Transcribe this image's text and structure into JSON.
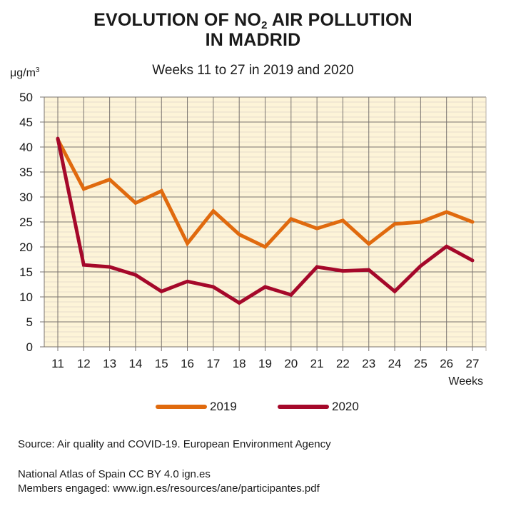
{
  "title": {
    "line1_pre": "EVOLUTION OF NO",
    "line1_sub": "2",
    "line1_post": " AIR POLLUTION",
    "line2": "IN MADRID"
  },
  "subtitle": "Weeks 11 to 27 in 2019 and 2020",
  "unit": {
    "base": "μg/m",
    "sup": "3"
  },
  "colors": {
    "s2019": "#e06a0e",
    "s2020": "#a5082a",
    "plot_bg": "#fdf4d8",
    "grid_major": "#7a7470",
    "grid_minor": "#e6dccb"
  },
  "chart_data": {
    "type": "line",
    "title": "EVOLUTION OF NO2 AIR POLLUTION IN MADRID",
    "subtitle": "Weeks 11 to 27 in 2019 and 2020",
    "xlabel": "Weeks",
    "ylabel": "μg/m3",
    "x": [
      11,
      12,
      13,
      14,
      15,
      16,
      17,
      18,
      19,
      20,
      21,
      22,
      23,
      24,
      25,
      26,
      27
    ],
    "ylim": [
      0,
      50
    ],
    "yticks": [
      0,
      5,
      10,
      15,
      20,
      25,
      30,
      35,
      40,
      45,
      50
    ],
    "grid": true,
    "legend_position": "bottom-center",
    "series": [
      {
        "name": "2019",
        "color": "#e06a0e",
        "values": [
          41.5,
          31.6,
          33.5,
          28.8,
          31.2,
          20.7,
          27.2,
          22.5,
          20.0,
          25.6,
          23.7,
          25.3,
          20.6,
          24.6,
          25.0,
          27.0,
          25.0
        ]
      },
      {
        "name": "2020",
        "color": "#a5082a",
        "values": [
          41.7,
          16.4,
          16.0,
          14.4,
          11.1,
          13.1,
          12.0,
          8.8,
          12.0,
          10.4,
          16.0,
          15.2,
          15.4,
          11.1,
          16.2,
          20.1,
          17.3
        ]
      }
    ]
  },
  "legend": [
    {
      "label": "2019"
    },
    {
      "label": "2020"
    }
  ],
  "footer": {
    "source": "Source: Air quality and COVID-19. European Environment Agency",
    "atlas": "National Atlas of Spain CC BY 4.0 ign.es",
    "members": "Members engaged: www.ign.es/resources/ane/participantes.pdf"
  }
}
